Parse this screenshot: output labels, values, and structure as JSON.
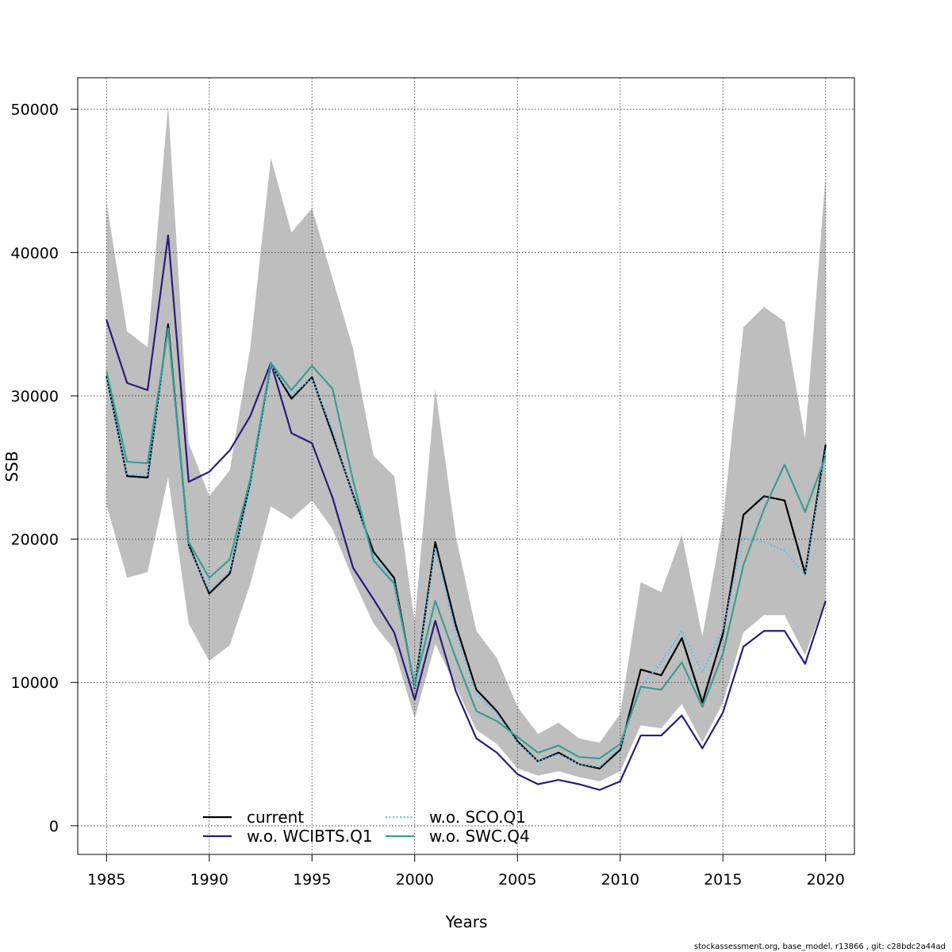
{
  "footer": "stockassessment.org, base_model, r13866 , git: c28bdc2a44ad",
  "chart_data": {
    "type": "line",
    "title": "",
    "xlabel": "Years",
    "ylabel": "SSB",
    "xlim": [
      1983.6,
      2021.4
    ],
    "ylim": [
      -2000,
      52200
    ],
    "x_ticks": [
      1985,
      1990,
      1995,
      2000,
      2005,
      2010,
      2015,
      2020
    ],
    "y_ticks": [
      0,
      10000,
      20000,
      30000,
      40000,
      50000
    ],
    "grid": true,
    "legend_position": "bottom",
    "x": [
      1985,
      1986,
      1987,
      1988,
      1989,
      1990,
      1991,
      1992,
      1993,
      1994,
      1995,
      1996,
      1997,
      1998,
      1999,
      2000,
      2001,
      2002,
      2003,
      2004,
      2005,
      2006,
      2007,
      2008,
      2009,
      2010,
      2011,
      2012,
      2013,
      2014,
      2015,
      2016,
      2017,
      2018,
      2019,
      2020
    ],
    "confidence_band": {
      "color": "#bebebe",
      "lower": [
        22400,
        17300,
        17700,
        24300,
        14100,
        11500,
        12600,
        16900,
        22300,
        21400,
        22700,
        20700,
        17200,
        14100,
        12300,
        7500,
        12700,
        9700,
        6700,
        5700,
        4000,
        3500,
        3800,
        3400,
        3100,
        3800,
        7000,
        6800,
        8500,
        5800,
        8600,
        13500,
        14700,
        14700,
        11900,
        15800
      ],
      "upper": [
        43500,
        34500,
        33400,
        50300,
        26700,
        23000,
        24800,
        33400,
        46600,
        41400,
        43100,
        38200,
        33300,
        25800,
        24400,
        14200,
        30500,
        20200,
        13600,
        11700,
        8300,
        6400,
        7200,
        6100,
        5800,
        7800,
        17000,
        16300,
        20300,
        13200,
        21300,
        34800,
        36200,
        35200,
        27000,
        45400
      ]
    },
    "series": [
      {
        "name": "current",
        "color": "#000000",
        "dash": "solid",
        "width": 2.2,
        "values": [
          31400,
          24400,
          24300,
          35000,
          19600,
          16200,
          17600,
          24000,
          32200,
          29800,
          31300,
          27300,
          23100,
          19100,
          17300,
          9600,
          19800,
          14000,
          9500,
          8000,
          5900,
          4500,
          5100,
          4300,
          4000,
          5300,
          10900,
          10500,
          13100,
          8600,
          13400,
          21700,
          23000,
          22700,
          17600,
          26600
        ]
      },
      {
        "name": "w.o. WCIBTS.Q1",
        "color": "#2e1a7e",
        "dash": "solid",
        "width": 2.2,
        "values": [
          35300,
          30900,
          30400,
          41200,
          24000,
          24700,
          26200,
          28600,
          32300,
          27400,
          26700,
          22900,
          18000,
          15800,
          13500,
          8800,
          14300,
          9400,
          6100,
          5100,
          3600,
          2900,
          3200,
          2900,
          2500,
          3100,
          6300,
          6300,
          7700,
          5400,
          7900,
          12500,
          13600,
          13600,
          11300,
          15700
        ]
      },
      {
        "name": "w.o. SCO.Q1",
        "color": "#5bc4f0",
        "dash": "dotted",
        "width": 2.2,
        "values": [
          31200,
          24500,
          24500,
          34600,
          19400,
          16400,
          17800,
          23700,
          32100,
          30100,
          31200,
          27600,
          23000,
          18700,
          17000,
          9600,
          19400,
          13400,
          9200,
          7800,
          5800,
          4500,
          5000,
          4300,
          4100,
          5500,
          9700,
          11400,
          13600,
          10700,
          13700,
          20100,
          19800,
          19200,
          17500,
          26200
        ]
      },
      {
        "name": "w.o. SWC.Q4",
        "color": "#3a9e8f",
        "dash": "solid",
        "width": 2.2,
        "values": [
          31700,
          25400,
          25300,
          34700,
          19800,
          17300,
          18600,
          24200,
          32300,
          30400,
          32100,
          30500,
          24100,
          18500,
          16900,
          9800,
          15700,
          11700,
          8000,
          7300,
          6200,
          5100,
          5600,
          4800,
          4700,
          5700,
          9700,
          9500,
          11400,
          8300,
          12000,
          18200,
          22100,
          25200,
          21900,
          25800
        ]
      }
    ]
  }
}
